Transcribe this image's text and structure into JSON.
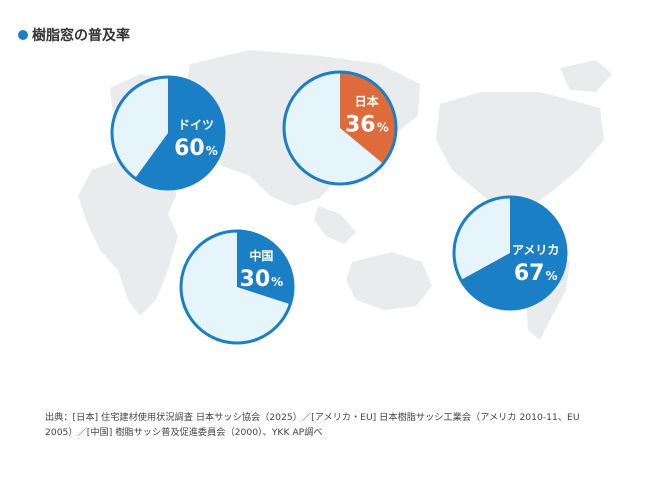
{
  "title": "樹脂窓の普及率",
  "colors": {
    "accent": "#1a7fc4",
    "japan": "#e06b3a",
    "remainder": "#e6f4fb",
    "ring": "#1a7fc4",
    "map": "#e9ebec"
  },
  "chart_data": {
    "type": "pie",
    "title": "樹脂窓の普及率",
    "unit": "%",
    "pies": [
      {
        "name": "ドイツ",
        "value": 60,
        "color": "#1a7fc4"
      },
      {
        "name": "日本",
        "value": 36,
        "color": "#e06b3a"
      },
      {
        "name": "中国",
        "value": 30,
        "color": "#1a7fc4"
      },
      {
        "name": "アメリカ",
        "value": 67,
        "color": "#1a7fc4"
      }
    ]
  },
  "source_line1": "出典：[日本] 住宅建材使用状況調査 日本サッシ協会（2025）／[アメリカ・EU] 日本樹脂サッシ工業会（アメリカ 2010-11、EU",
  "source_line2": "2005）／[中国] 樹脂サッシ普及促進委員会（2000）、YKK AP調べ"
}
